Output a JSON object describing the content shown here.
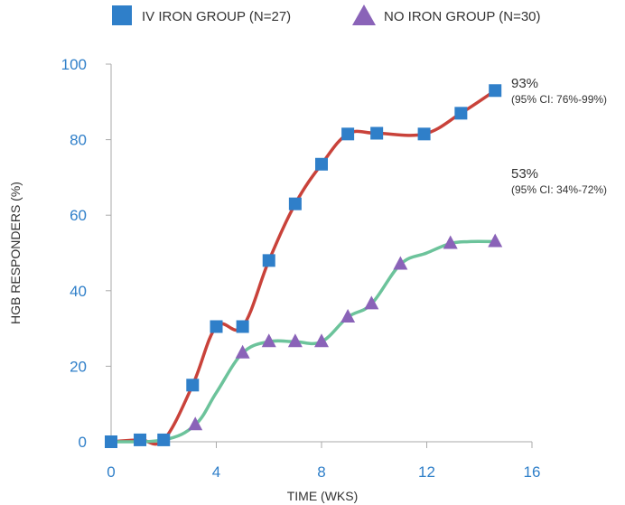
{
  "chart_data": {
    "type": "line",
    "title": "",
    "xlabel": "TIME (WKS)",
    "ylabel": "HGB RESPONDERS (%)",
    "xlim": [
      0,
      16
    ],
    "ylim": [
      0,
      100
    ],
    "x_ticks": [
      0,
      4,
      8,
      12,
      16
    ],
    "y_ticks": [
      0,
      20,
      40,
      60,
      80,
      100
    ],
    "grid": false,
    "legend_position": "top",
    "series": [
      {
        "name": "IV IRON GROUP (N=27)",
        "marker": "square",
        "marker_color": "#2f7fc9",
        "line_color": "#c9423a",
        "points": [
          [
            0,
            0
          ],
          [
            1.1,
            0.5
          ],
          [
            2.0,
            0.5
          ],
          [
            3.1,
            15
          ],
          [
            4.0,
            30.5
          ],
          [
            5.0,
            30.5
          ],
          [
            6.0,
            48
          ],
          [
            7.0,
            63
          ],
          [
            8.0,
            73.5
          ],
          [
            9.0,
            81.5
          ],
          [
            10.1,
            81.7
          ],
          [
            11.9,
            81.5
          ],
          [
            13.3,
            87
          ],
          [
            14.6,
            93
          ]
        ]
      },
      {
        "name": "NO IRON GROUP (N=30)",
        "marker": "triangle",
        "marker_color": "#8a63b8",
        "line_color": "#6cc39b",
        "points": [
          [
            0,
            0
          ],
          [
            2.0,
            0.5
          ],
          [
            3.2,
            4.5
          ],
          [
            4.0,
            13
          ],
          [
            5.0,
            23.5
          ],
          [
            6.0,
            26.5
          ],
          [
            7.0,
            26.5
          ],
          [
            8.0,
            26.5
          ],
          [
            9.0,
            33
          ],
          [
            9.9,
            36.5
          ],
          [
            11.0,
            47
          ],
          [
            12.0,
            50
          ],
          [
            12.9,
            52.5
          ],
          [
            13.6,
            53
          ],
          [
            14.6,
            53
          ]
        ]
      }
    ],
    "annotations": [
      {
        "main": "93%",
        "sub": "(95% CI: 76%-99%)",
        "x": 14.6,
        "y": 93
      },
      {
        "main": "53%",
        "sub": "(95% CI: 34%-72%)",
        "x": 14.6,
        "y": 53
      }
    ],
    "colors": {
      "axis": "#aaaaaa",
      "tick_label": "#2f7fc9"
    }
  }
}
